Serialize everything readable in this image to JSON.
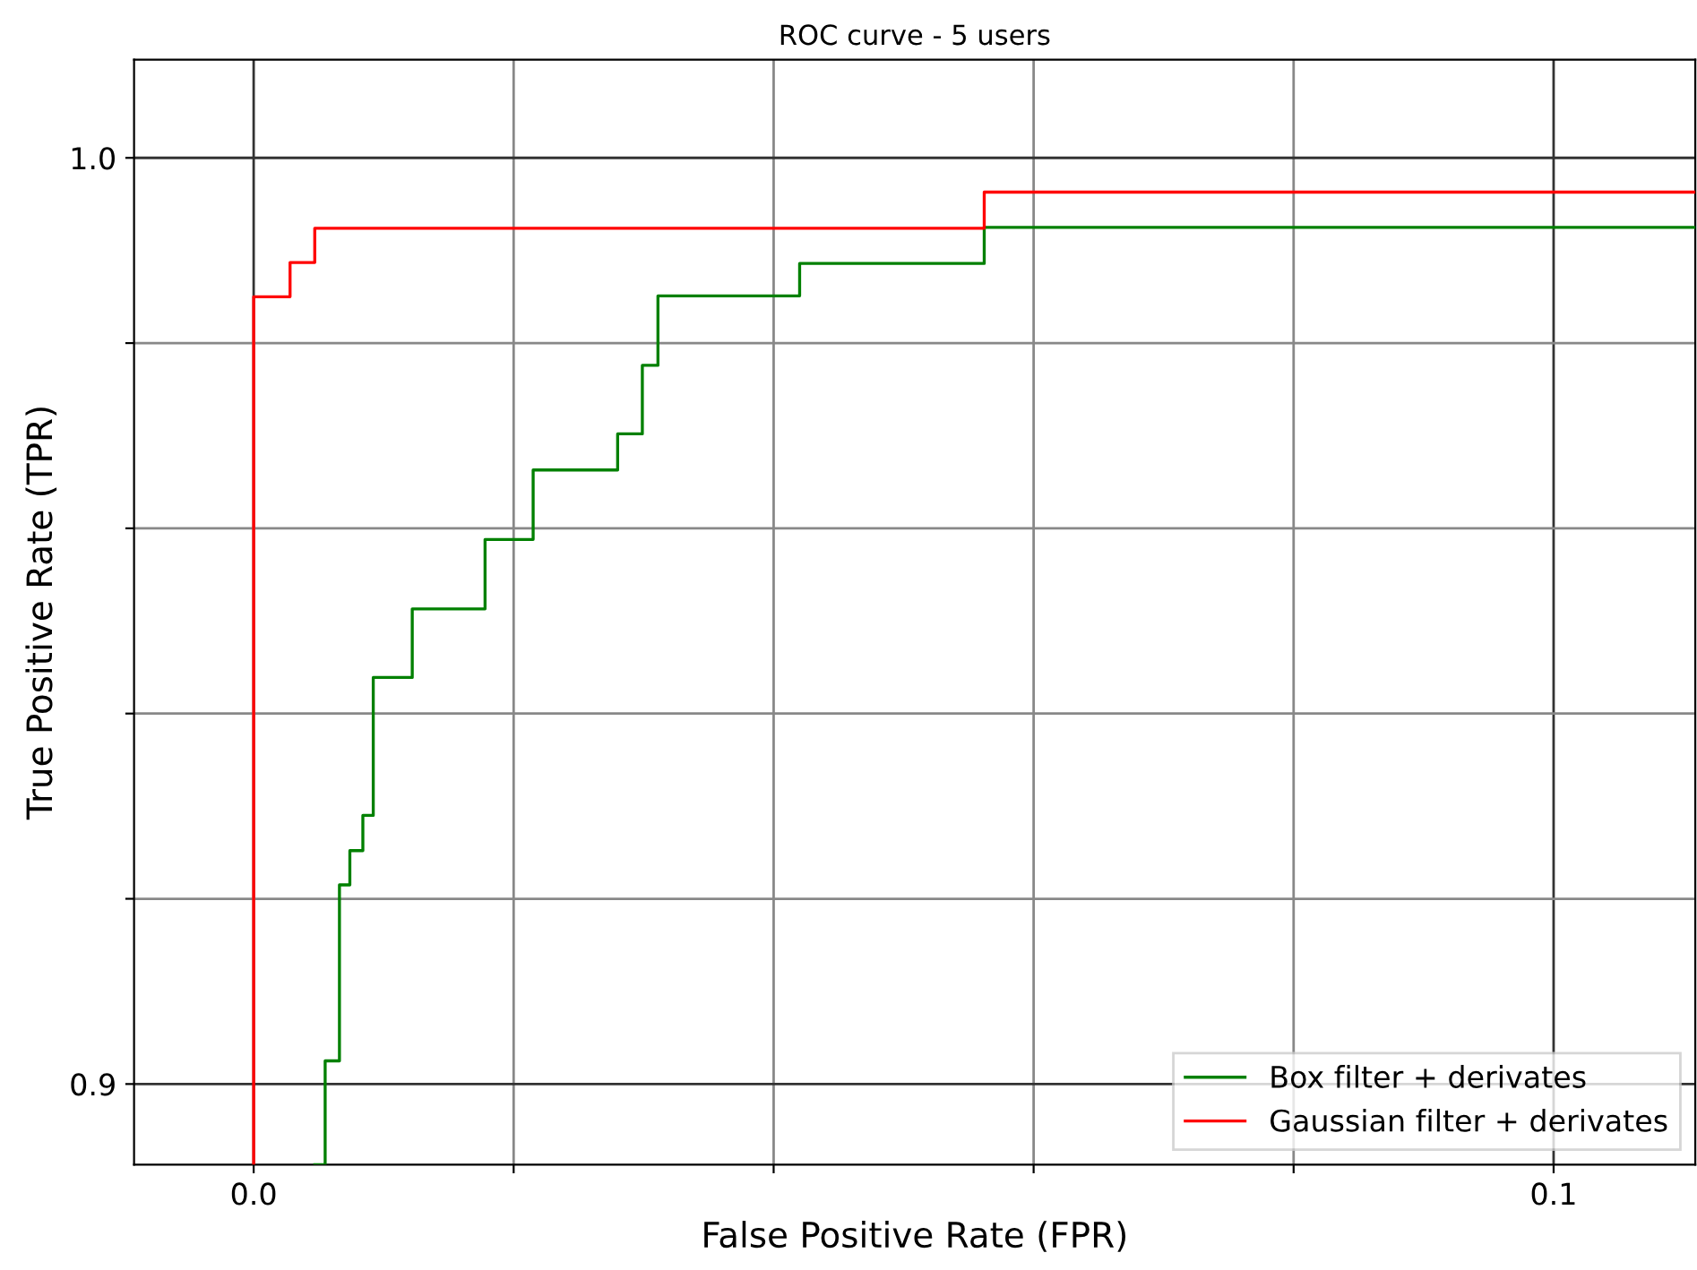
{
  "chart_data": {
    "type": "step",
    "title": "ROC curve - 5 users",
    "xlabel": "False Positive Rate (FPR)",
    "ylabel": "True Positive Rate (TPR)",
    "xlim": [
      -0.0092,
      0.1109
    ],
    "ylim": [
      0.8913,
      1.0106
    ],
    "xticks": [
      {
        "value": 0.0,
        "label": "0.0"
      },
      {
        "value": 0.02,
        "label": null
      },
      {
        "value": 0.04,
        "label": null
      },
      {
        "value": 0.06,
        "label": null
      },
      {
        "value": 0.08,
        "label": null
      },
      {
        "value": 0.1,
        "label": "0.1"
      }
    ],
    "yticks": [
      {
        "value": 0.9,
        "label": "0.9"
      },
      {
        "value": 0.92,
        "label": null
      },
      {
        "value": 0.94,
        "label": null
      },
      {
        "value": 0.96,
        "label": null
      },
      {
        "value": 0.98,
        "label": null
      },
      {
        "value": 1.0,
        "label": "1.0"
      }
    ],
    "grid": true,
    "legend": "bottom right",
    "series": [
      {
        "name": "Box filter + derivates",
        "color": "#008000",
        "x": [
          0.0047,
          0.0055,
          0.0066,
          0.0074,
          0.0084,
          0.0092,
          0.0122,
          0.0178,
          0.0215,
          0.028,
          0.0299,
          0.0311,
          0.042,
          0.0562,
          0.1109
        ],
        "values": [
          0.8913,
          0.9025,
          0.9215,
          0.9252,
          0.929,
          0.9439,
          0.9513,
          0.9588,
          0.9663,
          0.9702,
          0.9776,
          0.9851,
          0.9886,
          0.9925,
          0.9925
        ]
      },
      {
        "name": "Gaussian filter + derivates",
        "color": "#ff0000",
        "x": [
          0.0,
          0.0,
          0.0028,
          0.0047,
          0.0562,
          0.1109
        ],
        "values": [
          0.8913,
          0.985,
          0.9887,
          0.9924,
          0.9963,
          0.9963
        ]
      }
    ]
  }
}
